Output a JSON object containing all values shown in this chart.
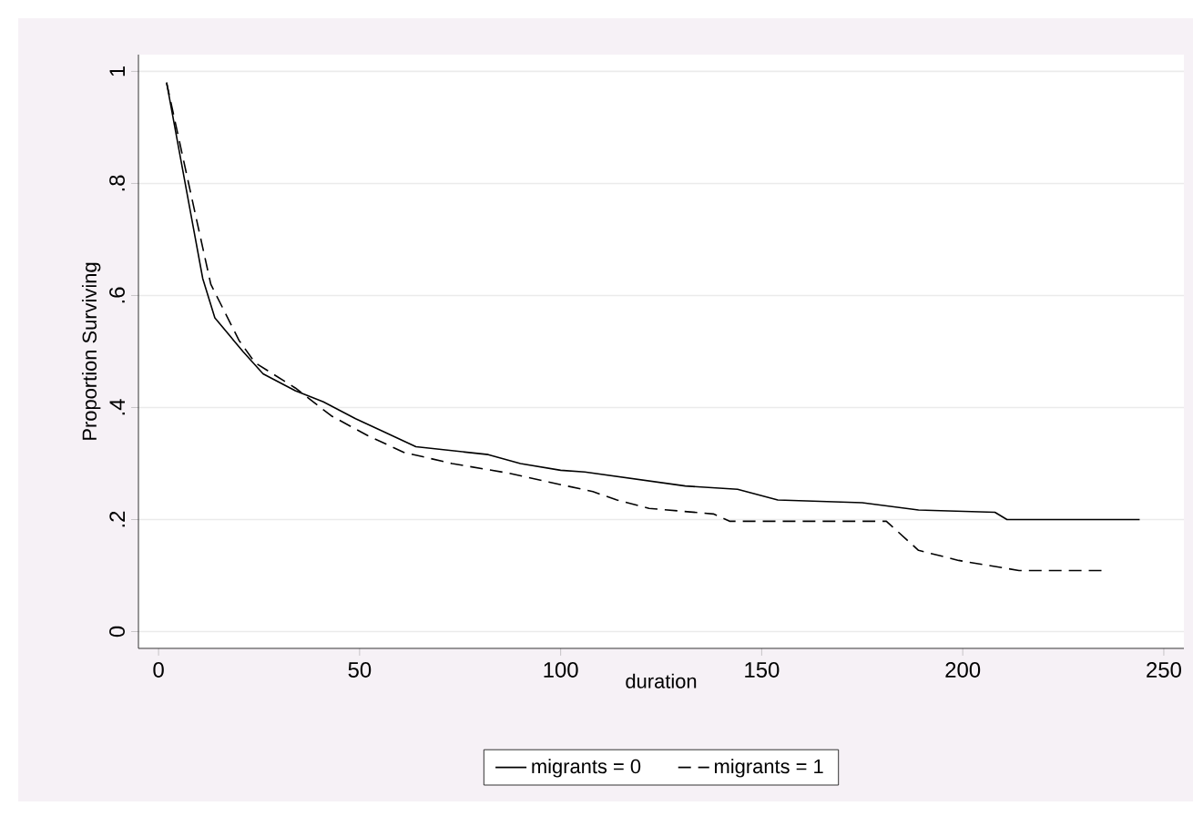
{
  "chart_data": {
    "type": "line",
    "xlabel": "duration",
    "ylabel": "Proportion Surviving",
    "xlim": [
      -5,
      255
    ],
    "ylim": [
      -0.03,
      1.03
    ],
    "xticks": [
      0,
      50,
      100,
      150,
      200,
      250
    ],
    "yticks": [
      {
        "value": 0,
        "label": "0"
      },
      {
        "value": 0.2,
        "label": ".2"
      },
      {
        "value": 0.4,
        "label": ".4"
      },
      {
        "value": 0.6,
        "label": ".6"
      },
      {
        "value": 0.8,
        "label": ".8"
      },
      {
        "value": 1,
        "label": "1"
      }
    ],
    "grid": "y",
    "legend": "bottom",
    "marker": "none",
    "series": [
      {
        "name": "migrants = 0",
        "color": "#000000",
        "line_style": "solid",
        "x": [
          2,
          11,
          14,
          21,
          26,
          34,
          41,
          49,
          55,
          64,
          82,
          90,
          100,
          106,
          131,
          144,
          154,
          175,
          189,
          208,
          211,
          244
        ],
        "values": [
          0.98,
          0.63,
          0.56,
          0.5,
          0.46,
          0.43,
          0.41,
          0.38,
          0.36,
          0.33,
          0.316,
          0.3,
          0.288,
          0.285,
          0.26,
          0.254,
          0.235,
          0.23,
          0.217,
          0.213,
          0.2,
          0.2
        ]
      },
      {
        "name": "migrants = 1",
        "color": "#000000",
        "line_style": "dashed",
        "x": [
          2,
          9,
          13,
          20,
          24,
          34,
          43,
          52,
          61,
          73,
          87,
          97,
          108,
          114,
          122,
          138,
          142,
          181,
          189,
          199,
          214,
          235
        ],
        "values": [
          0.98,
          0.75,
          0.62,
          0.52,
          0.48,
          0.435,
          0.385,
          0.35,
          0.32,
          0.3,
          0.283,
          0.267,
          0.25,
          0.235,
          0.22,
          0.21,
          0.197,
          0.197,
          0.145,
          0.127,
          0.109,
          0.109
        ]
      }
    ]
  }
}
